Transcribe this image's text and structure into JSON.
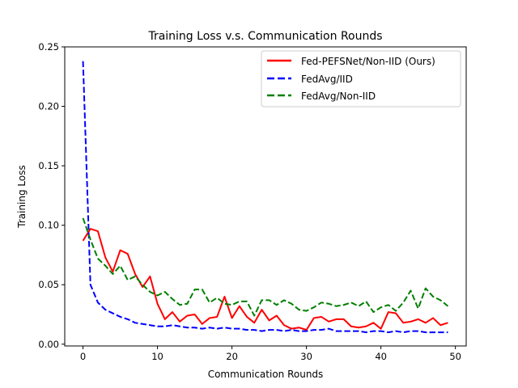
{
  "chart_data": {
    "type": "line",
    "title": "Training Loss v.s. Communication Rounds",
    "xlabel": "Communication Rounds",
    "ylabel": "Training Loss",
    "xlim": [
      -2.45,
      51.45
    ],
    "ylim": [
      -0.0015,
      0.25
    ],
    "xticks": [
      0,
      10,
      20,
      30,
      40,
      50
    ],
    "yticks": [
      0.0,
      0.05,
      0.1,
      0.15,
      0.2,
      0.25
    ],
    "ytick_labels": [
      "0.00",
      "0.05",
      "0.10",
      "0.15",
      "0.20",
      "0.25"
    ],
    "grid": false,
    "legend_position": "top-right",
    "x": [
      0,
      1,
      2,
      3,
      4,
      5,
      6,
      7,
      8,
      9,
      10,
      11,
      12,
      13,
      14,
      15,
      16,
      17,
      18,
      19,
      20,
      21,
      22,
      23,
      24,
      25,
      26,
      27,
      28,
      29,
      30,
      31,
      32,
      33,
      34,
      35,
      36,
      37,
      38,
      39,
      40,
      41,
      42,
      43,
      44,
      45,
      46,
      47,
      48,
      49
    ],
    "series": [
      {
        "name": "Fed-PEFSNet/Non-IID (Ours)",
        "color": "#ff0000",
        "dash": "solid",
        "values": [
          0.087,
          0.097,
          0.095,
          0.073,
          0.061,
          0.079,
          0.076,
          0.059,
          0.048,
          0.057,
          0.034,
          0.021,
          0.027,
          0.019,
          0.024,
          0.025,
          0.017,
          0.022,
          0.023,
          0.04,
          0.022,
          0.032,
          0.023,
          0.018,
          0.029,
          0.02,
          0.024,
          0.016,
          0.013,
          0.014,
          0.012,
          0.022,
          0.023,
          0.019,
          0.021,
          0.021,
          0.015,
          0.014,
          0.015,
          0.018,
          0.013,
          0.027,
          0.026,
          0.018,
          0.019,
          0.021,
          0.018,
          0.022,
          0.016,
          0.018
        ]
      },
      {
        "name": "FedAvg/IID",
        "color": "#0000ff",
        "dash": "dashed",
        "values": [
          0.238,
          0.05,
          0.035,
          0.029,
          0.026,
          0.023,
          0.021,
          0.018,
          0.017,
          0.016,
          0.015,
          0.015,
          0.016,
          0.015,
          0.014,
          0.014,
          0.013,
          0.014,
          0.013,
          0.014,
          0.013,
          0.013,
          0.012,
          0.012,
          0.011,
          0.012,
          0.012,
          0.011,
          0.012,
          0.011,
          0.011,
          0.012,
          0.012,
          0.013,
          0.011,
          0.011,
          0.011,
          0.011,
          0.01,
          0.011,
          0.011,
          0.01,
          0.011,
          0.01,
          0.011,
          0.011,
          0.01,
          0.01,
          0.01,
          0.01
        ]
      },
      {
        "name": "FedAvg/Non-IID",
        "color": "#008000",
        "dash": "dashed",
        "values": [
          0.106,
          0.088,
          0.072,
          0.066,
          0.059,
          0.066,
          0.054,
          0.057,
          0.05,
          0.044,
          0.041,
          0.044,
          0.038,
          0.033,
          0.034,
          0.046,
          0.046,
          0.035,
          0.039,
          0.034,
          0.033,
          0.036,
          0.036,
          0.024,
          0.037,
          0.037,
          0.033,
          0.037,
          0.034,
          0.029,
          0.028,
          0.031,
          0.035,
          0.034,
          0.032,
          0.033,
          0.035,
          0.032,
          0.036,
          0.027,
          0.031,
          0.033,
          0.028,
          0.035,
          0.045,
          0.03,
          0.047,
          0.04,
          0.037,
          0.032
        ]
      }
    ]
  }
}
